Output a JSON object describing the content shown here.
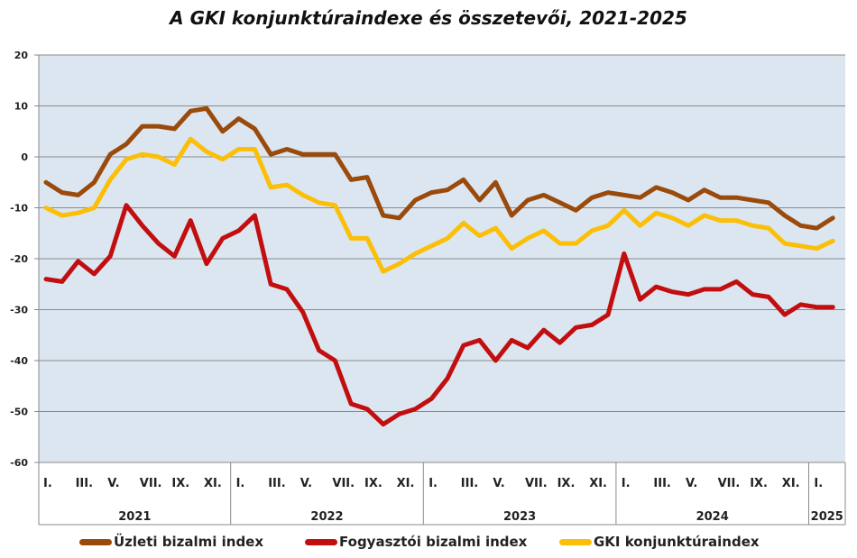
{
  "chart_data": {
    "type": "line",
    "title": "A GKI konjunktúraindexe és összetevői, 2021-2025",
    "ylim": [
      -60,
      20
    ],
    "yticks": [
      "20",
      "10",
      "0",
      "-10",
      "-20",
      "-30",
      "-40",
      "-50",
      "-60"
    ],
    "grid": true,
    "legend_position": "bottom",
    "month_labels": [
      "I.",
      "III.",
      "V.",
      "VII.",
      "IX.",
      "XI."
    ],
    "years": [
      "2021",
      "2022",
      "2023",
      "2024",
      "2025"
    ],
    "x_start": "2021-01",
    "series": [
      {
        "name": "Üzleti bizalmi index",
        "color": "#9a4a0b",
        "values": [
          -5,
          -7,
          -7.5,
          -5,
          0.5,
          2.5,
          6,
          6,
          5.5,
          9,
          9.5,
          5,
          7.5,
          5.5,
          0.5,
          1.5,
          0.5,
          0.5,
          0.5,
          -4.5,
          -4,
          -11.5,
          -12,
          -8.5,
          -7,
          -6.5,
          -4.5,
          -8.5,
          -5,
          -11.5,
          -8.5,
          -7.5,
          -9,
          -10.5,
          -8,
          -7,
          -7.5,
          -8,
          -6,
          -7,
          -8.5,
          -6.5,
          -8,
          -8,
          -8.5,
          -9,
          -11.5,
          -13.5,
          -14,
          -12
        ]
      },
      {
        "name": "Fogyasztói bizalmi index",
        "color": "#c20e0e",
        "values": [
          -24,
          -24.5,
          -20.5,
          -23,
          -19.5,
          -9.5,
          -13.5,
          -17,
          -19.5,
          -12.5,
          -21,
          -16,
          -14.5,
          -11.5,
          -25,
          -26,
          -30.5,
          -38,
          -40,
          -48.5,
          -49.5,
          -52.5,
          -50.5,
          -49.5,
          -47.5,
          -43.5,
          -37,
          -36,
          -40,
          -36,
          -37.5,
          -34,
          -36.5,
          -33.5,
          -33,
          -31,
          -19,
          -28,
          -25.5,
          -26.5,
          -27,
          -26,
          -26,
          -24.5,
          -27,
          -27.5,
          -31,
          -29,
          -29.5,
          -29.5
        ]
      },
      {
        "name": "GKI konjunktúraindex",
        "color": "#fbbf08",
        "values": [
          -10,
          -11.5,
          -11,
          -10,
          -4.5,
          -0.5,
          0.5,
          0,
          -1.5,
          3.5,
          1,
          -0.5,
          1.5,
          1.5,
          -6,
          -5.5,
          -7.5,
          -9,
          -9.5,
          -16,
          -16,
          -22.5,
          -21,
          -19,
          -17.5,
          -16,
          -13,
          -15.5,
          -14,
          -18,
          -16,
          -14.5,
          -17,
          -17,
          -14.5,
          -13.5,
          -10.5,
          -13.5,
          -11,
          -12,
          -13.5,
          -11.5,
          -12.5,
          -12.5,
          -13.5,
          -14,
          -17,
          -17.5,
          -18,
          -16.5
        ]
      }
    ]
  }
}
